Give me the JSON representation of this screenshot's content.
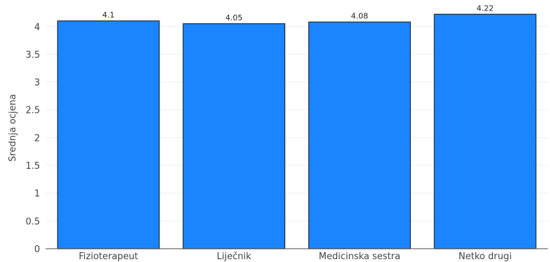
{
  "chart_data": {
    "type": "bar",
    "title": "",
    "xlabel": "",
    "ylabel": "Srednja ocjena",
    "categories": [
      "Fizioterapeut",
      "Liječnik",
      "Medicinska sestra",
      "Netko drugi"
    ],
    "values": [
      4.1,
      4.05,
      4.08,
      4.22
    ],
    "data_labels": [
      "4.1",
      "4.05",
      "4.08",
      "4.22"
    ],
    "yticks": [
      "0",
      "0.5",
      "1",
      "1.5",
      "2",
      "2.5",
      "3",
      "3.5",
      "4"
    ],
    "ylim": [
      0,
      4.35
    ],
    "grid": true,
    "bar_color": "#1a85ff",
    "bar_edge_color": "#1f2a36"
  }
}
